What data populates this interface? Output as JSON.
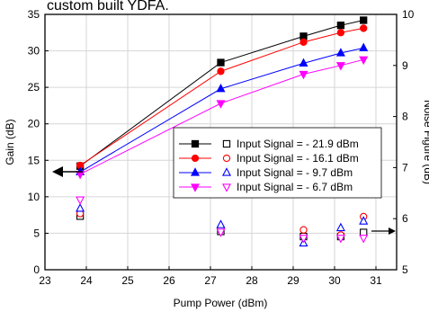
{
  "header_fragment": "custom built YDFA.",
  "chart_data": {
    "type": "line",
    "xlabel": "Pump Power (dBm)",
    "ylabel_left": "Gain (dB)",
    "ylabel_right": "Noise Figure (dB)",
    "xlim": [
      23,
      31.5
    ],
    "ylim_left": [
      0,
      35
    ],
    "ylim_right": [
      5,
      10
    ],
    "x_ticks": [
      23,
      24,
      25,
      26,
      27,
      28,
      29,
      30,
      31
    ],
    "y_left_ticks": [
      0,
      5,
      10,
      15,
      20,
      25,
      30,
      35
    ],
    "y_right_ticks": [
      5,
      6,
      7,
      8,
      9,
      10
    ],
    "grid": true,
    "legend_position": "center-right",
    "series": [
      {
        "name": "Input Signal = - 21.9 dBm",
        "color": "#000000",
        "marker": "square",
        "x": [
          23.85,
          27.25,
          29.25,
          30.15,
          30.7
        ],
        "gain": [
          14.2,
          28.4,
          32.0,
          33.5,
          34.2
        ],
        "noise_figure": [
          6.05,
          5.75,
          5.65,
          5.65,
          5.73
        ]
      },
      {
        "name": "Input Signal = - 16.1 dBm",
        "color": "#ff0000",
        "marker": "circle",
        "x": [
          23.85,
          27.25,
          29.25,
          30.15,
          30.7
        ],
        "gain": [
          14.3,
          27.2,
          31.2,
          32.5,
          33.1
        ],
        "noise_figure": [
          6.1,
          5.82,
          5.78,
          5.68,
          6.04
        ]
      },
      {
        "name": "Input Signal = - 9.7 dBm",
        "color": "#0000ff",
        "marker": "triangle-up",
        "x": [
          23.85,
          27.25,
          29.25,
          30.15,
          30.7
        ],
        "gain": [
          13.4,
          24.8,
          28.3,
          29.7,
          30.4
        ],
        "noise_figure": [
          6.2,
          5.88,
          5.52,
          5.82,
          5.95
        ]
      },
      {
        "name": "Input Signal = - 6.7 dBm",
        "color": "#ff00ff",
        "marker": "triangle-down",
        "x": [
          23.85,
          27.25,
          29.25,
          30.15,
          30.7
        ],
        "gain": [
          13.1,
          22.8,
          26.8,
          28.0,
          28.8
        ],
        "noise_figure": [
          6.37,
          5.74,
          5.62,
          5.62,
          5.62
        ]
      }
    ]
  }
}
